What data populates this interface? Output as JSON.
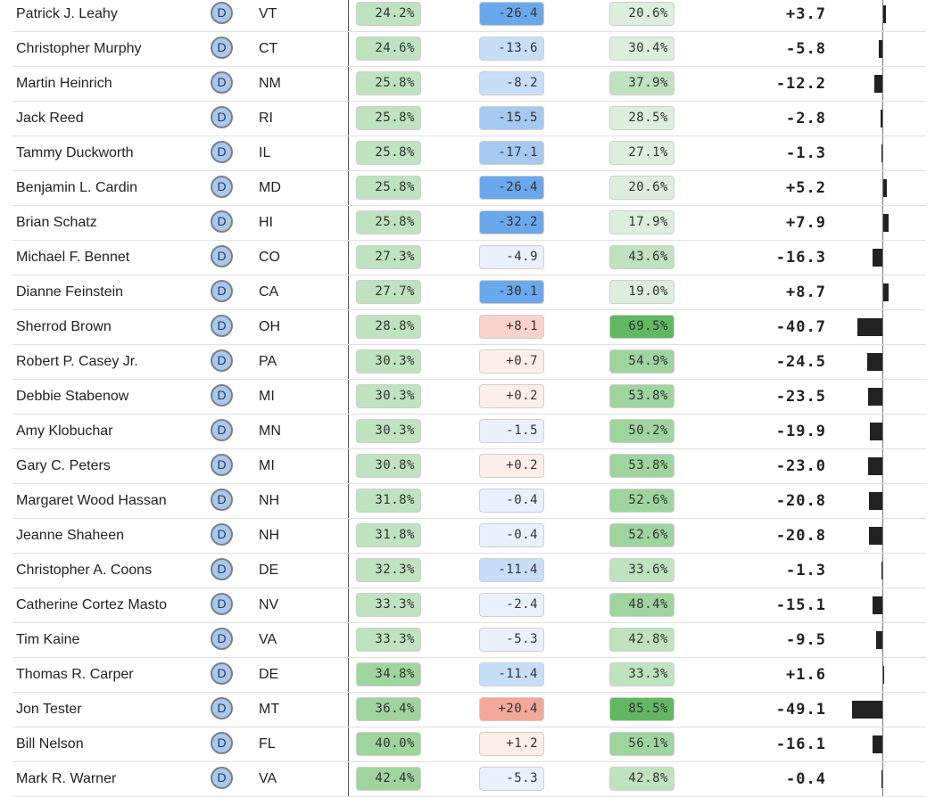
{
  "colors": {
    "party_badge": "#a9c9ec",
    "bar": "#222222",
    "green_scale": [
      "#dcefdc",
      "#bfe2bf",
      "#9fd49f",
      "#62b862"
    ],
    "blue_scale": [
      "#e8f1fc",
      "#c7def8",
      "#a6c9f1",
      "#6aa8ec"
    ],
    "red_scale": [
      "#fdeee9",
      "#f9d2ca",
      "#f3a89a"
    ]
  },
  "rows": [
    {
      "name": "Patrick J. Leahy",
      "party": "D",
      "state": "VT",
      "c1": "24.2%",
      "c2": "-26.4",
      "c3": "20.6%",
      "net": "+3.7",
      "net_value": 3.7
    },
    {
      "name": "Christopher Murphy",
      "party": "D",
      "state": "CT",
      "c1": "24.6%",
      "c2": "-13.6",
      "c3": "30.4%",
      "net": "-5.8",
      "net_value": -5.8
    },
    {
      "name": "Martin Heinrich",
      "party": "D",
      "state": "NM",
      "c1": "25.8%",
      "c2": "-8.2",
      "c3": "37.9%",
      "net": "-12.2",
      "net_value": -12.2
    },
    {
      "name": "Jack Reed",
      "party": "D",
      "state": "RI",
      "c1": "25.8%",
      "c2": "-15.5",
      "c3": "28.5%",
      "net": "-2.8",
      "net_value": -2.8
    },
    {
      "name": "Tammy Duckworth",
      "party": "D",
      "state": "IL",
      "c1": "25.8%",
      "c2": "-17.1",
      "c3": "27.1%",
      "net": "-1.3",
      "net_value": -1.3
    },
    {
      "name": "Benjamin L. Cardin",
      "party": "D",
      "state": "MD",
      "c1": "25.8%",
      "c2": "-26.4",
      "c3": "20.6%",
      "net": "+5.2",
      "net_value": 5.2
    },
    {
      "name": "Brian Schatz",
      "party": "D",
      "state": "HI",
      "c1": "25.8%",
      "c2": "-32.2",
      "c3": "17.9%",
      "net": "+7.9",
      "net_value": 7.9
    },
    {
      "name": "Michael F. Bennet",
      "party": "D",
      "state": "CO",
      "c1": "27.3%",
      "c2": "-4.9",
      "c3": "43.6%",
      "net": "-16.3",
      "net_value": -16.3
    },
    {
      "name": "Dianne Feinstein",
      "party": "D",
      "state": "CA",
      "c1": "27.7%",
      "c2": "-30.1",
      "c3": "19.0%",
      "net": "+8.7",
      "net_value": 8.7
    },
    {
      "name": "Sherrod Brown",
      "party": "D",
      "state": "OH",
      "c1": "28.8%",
      "c2": "+8.1",
      "c3": "69.5%",
      "net": "-40.7",
      "net_value": -40.7
    },
    {
      "name": "Robert P. Casey Jr.",
      "party": "D",
      "state": "PA",
      "c1": "30.3%",
      "c2": "+0.7",
      "c3": "54.9%",
      "net": "-24.5",
      "net_value": -24.5
    },
    {
      "name": "Debbie Stabenow",
      "party": "D",
      "state": "MI",
      "c1": "30.3%",
      "c2": "+0.2",
      "c3": "53.8%",
      "net": "-23.5",
      "net_value": -23.5
    },
    {
      "name": "Amy Klobuchar",
      "party": "D",
      "state": "MN",
      "c1": "30.3%",
      "c2": "-1.5",
      "c3": "50.2%",
      "net": "-19.9",
      "net_value": -19.9
    },
    {
      "name": "Gary C. Peters",
      "party": "D",
      "state": "MI",
      "c1": "30.8%",
      "c2": "+0.2",
      "c3": "53.8%",
      "net": "-23.0",
      "net_value": -23.0
    },
    {
      "name": "Margaret Wood Hassan",
      "party": "D",
      "state": "NH",
      "c1": "31.8%",
      "c2": "-0.4",
      "c3": "52.6%",
      "net": "-20.8",
      "net_value": -20.8
    },
    {
      "name": "Jeanne Shaheen",
      "party": "D",
      "state": "NH",
      "c1": "31.8%",
      "c2": "-0.4",
      "c3": "52.6%",
      "net": "-20.8",
      "net_value": -20.8
    },
    {
      "name": "Christopher A. Coons",
      "party": "D",
      "state": "DE",
      "c1": "32.3%",
      "c2": "-11.4",
      "c3": "33.6%",
      "net": "-1.3",
      "net_value": -1.3
    },
    {
      "name": "Catherine Cortez Masto",
      "party": "D",
      "state": "NV",
      "c1": "33.3%",
      "c2": "-2.4",
      "c3": "48.4%",
      "net": "-15.1",
      "net_value": -15.1
    },
    {
      "name": "Tim Kaine",
      "party": "D",
      "state": "VA",
      "c1": "33.3%",
      "c2": "-5.3",
      "c3": "42.8%",
      "net": "-9.5",
      "net_value": -9.5
    },
    {
      "name": "Thomas R. Carper",
      "party": "D",
      "state": "DE",
      "c1": "34.8%",
      "c2": "-11.4",
      "c3": "33.3%",
      "net": "+1.6",
      "net_value": 1.6
    },
    {
      "name": "Jon Tester",
      "party": "D",
      "state": "MT",
      "c1": "36.4%",
      "c2": "+20.4",
      "c3": "85.5%",
      "net": "-49.1",
      "net_value": -49.1
    },
    {
      "name": "Bill Nelson",
      "party": "D",
      "state": "FL",
      "c1": "40.0%",
      "c2": "+1.2",
      "c3": "56.1%",
      "net": "-16.1",
      "net_value": -16.1
    },
    {
      "name": "Mark R. Warner",
      "party": "D",
      "state": "VA",
      "c1": "42.4%",
      "c2": "-5.3",
      "c3": "42.8%",
      "net": "-0.4",
      "net_value": -0.4
    }
  ]
}
